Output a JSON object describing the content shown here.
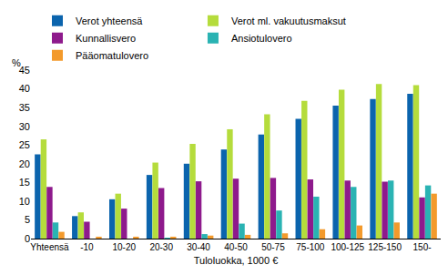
{
  "chart_data": {
    "type": "bar",
    "ylabel": "%",
    "xlabel": "Tuloluokka, 1000 €",
    "categories": [
      "Yhteensä",
      "-10",
      "10-20",
      "20-30",
      "30-40",
      "40-50",
      "50-75",
      "75-100",
      "100-125",
      "125-150",
      "150-"
    ],
    "series": [
      {
        "name": "Verot yhteensä",
        "color": "#0b64ad",
        "values": [
          22.5,
          6,
          10.5,
          17,
          20,
          23.8,
          27.8,
          32,
          35.5,
          37.3,
          38.7
        ]
      },
      {
        "name": "Verot ml. vakuutusmaksut",
        "color": "#b5dc3c",
        "values": [
          26.5,
          7,
          12,
          20.3,
          25.3,
          29.2,
          33.2,
          36.8,
          39.8,
          41.3,
          41
        ]
      },
      {
        "name": "Kunnallisvero",
        "color": "#8e1a8c",
        "values": [
          13.8,
          4.5,
          8,
          13.5,
          15.3,
          16,
          16.2,
          15.8,
          15.5,
          15.2,
          11
        ]
      },
      {
        "name": "Ansiotulovero",
        "color": "#2ab3b3",
        "values": [
          4.3,
          0,
          0,
          0.1,
          1.2,
          4,
          7.5,
          11.2,
          13.8,
          15.5,
          14.2
        ]
      },
      {
        "name": "Pääomatulovero",
        "color": "#f39a2c",
        "values": [
          1.8,
          0.5,
          0.5,
          0.5,
          0.8,
          1,
          1.4,
          2.5,
          3.5,
          4.3,
          12
        ]
      }
    ],
    "ylim": [
      0,
      45
    ],
    "yticks": [
      0,
      5,
      10,
      15,
      20,
      25,
      30,
      35,
      40,
      45
    ],
    "grid": false,
    "legend": "top"
  }
}
